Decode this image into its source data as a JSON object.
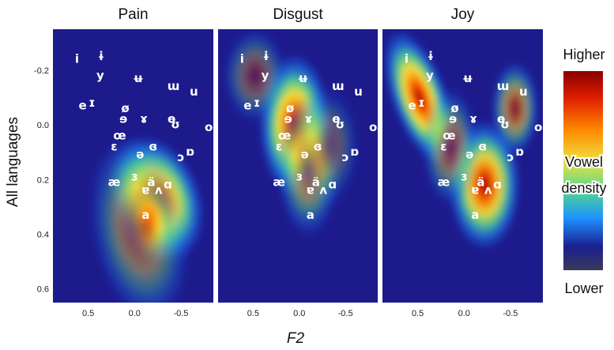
{
  "chart_data": {
    "type": "heatmap",
    "xlabel": "F2",
    "ylabel": "All languages",
    "x_ticks": [
      "0.5",
      "0.0",
      "-0.5"
    ],
    "y_ticks": [
      "-0.2",
      "0.0",
      "0.2",
      "0.4",
      "0.6"
    ],
    "xlim": [
      0.88,
      -0.85
    ],
    "ylim": [
      -0.35,
      0.65
    ],
    "y_reversed": true,
    "legend": {
      "title": [
        "Vowel",
        "density"
      ],
      "high": "Higher",
      "low": "Lower",
      "colors": [
        "#8b0000",
        "#e02000",
        "#ff8c00",
        "#f0e040",
        "#50d890",
        "#1e90ff",
        "#1a2090",
        "#3a3a5a"
      ]
    },
    "vowels": [
      {
        "label": "i",
        "x": 0.62,
        "y": -0.24
      },
      {
        "label": "ɨ",
        "x": 0.36,
        "y": -0.25
      },
      {
        "label": "y",
        "x": 0.37,
        "y": -0.18
      },
      {
        "label": "ʉ",
        "x": -0.04,
        "y": -0.17
      },
      {
        "label": "ɯ",
        "x": -0.42,
        "y": -0.14
      },
      {
        "label": "u",
        "x": -0.64,
        "y": -0.12
      },
      {
        "label": "e",
        "x": 0.56,
        "y": -0.07
      },
      {
        "label": "ɪ",
        "x": 0.46,
        "y": -0.08
      },
      {
        "label": "ø",
        "x": 0.1,
        "y": -0.06
      },
      {
        "label": "ɘ",
        "x": 0.12,
        "y": -0.02
      },
      {
        "label": "ɤ",
        "x": -0.1,
        "y": -0.02
      },
      {
        "label": "ɵ",
        "x": -0.4,
        "y": -0.02
      },
      {
        "label": "ʊ",
        "x": -0.44,
        "y": 0.0
      },
      {
        "label": "o",
        "x": -0.8,
        "y": 0.01
      },
      {
        "label": "œ",
        "x": 0.16,
        "y": 0.04
      },
      {
        "label": "ɛ",
        "x": 0.22,
        "y": 0.08
      },
      {
        "label": "ɞ",
        "x": -0.2,
        "y": 0.08
      },
      {
        "label": "ə",
        "x": -0.06,
        "y": 0.11
      },
      {
        "label": "ɔ",
        "x": -0.5,
        "y": 0.12
      },
      {
        "label": "ɒ",
        "x": -0.6,
        "y": 0.1
      },
      {
        "label": "æ",
        "x": 0.22,
        "y": 0.21
      },
      {
        "label": "ɜ",
        "x": 0.0,
        "y": 0.19
      },
      {
        "label": "ä",
        "x": -0.18,
        "y": 0.21
      },
      {
        "label": "ɑ",
        "x": -0.36,
        "y": 0.22
      },
      {
        "label": "ɐ",
        "x": -0.12,
        "y": 0.24
      },
      {
        "label": "ʌ",
        "x": -0.26,
        "y": 0.24
      },
      {
        "label": "a",
        "x": -0.12,
        "y": 0.33
      }
    ],
    "panels": [
      {
        "title": "Pain",
        "blobs": [
          {
            "x": -0.24,
            "y": 0.27,
            "sx": 0.22,
            "sy": 0.11,
            "w": 1.0,
            "rot": -22
          },
          {
            "x": -0.16,
            "y": 0.36,
            "sx": 0.12,
            "sy": 0.07,
            "w": 0.55,
            "rot": 0
          },
          {
            "x": -0.05,
            "y": 0.38,
            "sx": 0.24,
            "sy": 0.16,
            "w": 0.45,
            "rot": -10
          }
        ]
      },
      {
        "title": "Disgust",
        "blobs": [
          {
            "x": 0.05,
            "y": 0.0,
            "sx": 0.18,
            "sy": 0.12,
            "w": 1.0,
            "rot": 0
          },
          {
            "x": -0.1,
            "y": 0.15,
            "sx": 0.16,
            "sy": 0.12,
            "w": 0.55,
            "rot": 0
          },
          {
            "x": 0.48,
            "y": -0.18,
            "sx": 0.16,
            "sy": 0.08,
            "w": 0.35,
            "rot": 0
          },
          {
            "x": -0.3,
            "y": 0.08,
            "sx": 0.16,
            "sy": 0.1,
            "w": 0.3,
            "rot": 0
          }
        ]
      },
      {
        "title": "Joy",
        "blobs": [
          {
            "x": 0.48,
            "y": -0.1,
            "sx": 0.14,
            "sy": 0.12,
            "w": 1.0,
            "rot": -20
          },
          {
            "x": -0.22,
            "y": 0.22,
            "sx": 0.18,
            "sy": 0.11,
            "w": 0.95,
            "rot": 0
          },
          {
            "x": -0.55,
            "y": -0.06,
            "sx": 0.12,
            "sy": 0.08,
            "w": 0.6,
            "rot": 0
          },
          {
            "x": 0.15,
            "y": 0.08,
            "sx": 0.14,
            "sy": 0.1,
            "w": 0.45,
            "rot": 0
          }
        ]
      }
    ]
  }
}
